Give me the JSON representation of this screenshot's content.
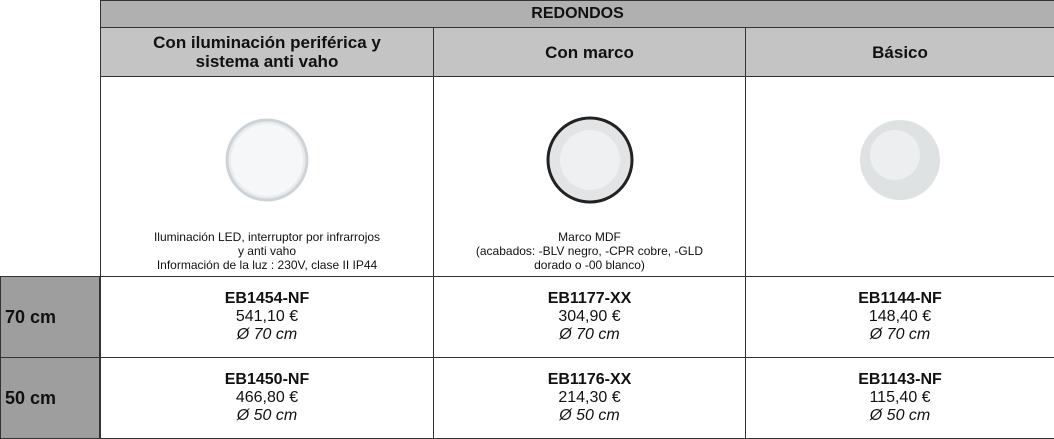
{
  "header": {
    "title": "REDONDOS"
  },
  "columns": [
    {
      "heading": [
        "Con iluminación periférica y",
        "sistema anti vaho"
      ],
      "description": [
        "Iluminación LED, interruptor por infrarrojos",
        "y anti vaho",
        "Información de la luz : 230V, clase II IP44"
      ]
    },
    {
      "heading": [
        "Con marco"
      ],
      "description": [
        "Marco MDF",
        "(acabados: -BLV negro, -CPR cobre, -GLD",
        "dorado o -00 blanco)"
      ]
    },
    {
      "heading": [
        "Básico"
      ]
    }
  ],
  "rows": [
    {
      "size": "70 cm",
      "cells": [
        {
          "code": "EB1454-NF",
          "price": "541,10 €",
          "diameter": "Ø 70 cm"
        },
        {
          "code": "EB1177-XX",
          "price": "304,90 €",
          "diameter": "Ø 70 cm"
        },
        {
          "code": "EB1144-NF",
          "price": "148,40 €",
          "diameter": "Ø 70 cm"
        }
      ]
    },
    {
      "size": "50 cm",
      "cells": [
        {
          "code": "EB1450-NF",
          "price": "466,80 €",
          "diameter": "Ø 50 cm"
        },
        {
          "code": "EB1176-XX",
          "price": "214,30 €",
          "diameter": "Ø 50 cm"
        },
        {
          "code": "EB1143-NF",
          "price": "115,40 €",
          "diameter": "Ø 50 cm"
        }
      ]
    }
  ]
}
